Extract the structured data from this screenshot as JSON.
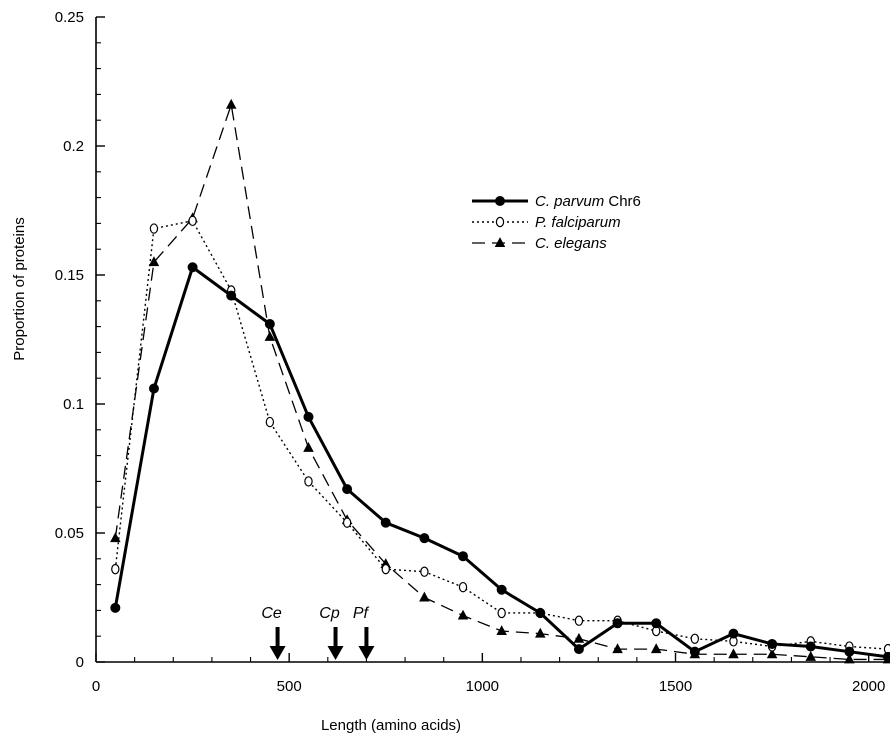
{
  "chart_data": {
    "type": "line",
    "title": "",
    "xlabel": "Length (amino acids)",
    "ylabel": "Proportion of proteins",
    "xlim": [
      0,
      2050
    ],
    "ylim": [
      0,
      0.25
    ],
    "x_ticks": [
      0,
      500,
      1000,
      1500,
      2000
    ],
    "x_tick_labels": [
      "0",
      "500",
      "1000",
      "1500",
      "2000"
    ],
    "y_ticks": [
      0,
      0.05,
      0.1,
      0.15,
      0.2,
      0.25
    ],
    "y_tick_labels": [
      "0",
      "0.05",
      "0.1",
      "0.15",
      "0.2",
      "0.25"
    ],
    "grid": false,
    "legend_position": "upper-right",
    "x": [
      50,
      150,
      250,
      350,
      450,
      550,
      650,
      750,
      850,
      950,
      1050,
      1150,
      1250,
      1350,
      1450,
      1550,
      1650,
      1750,
      1850,
      1950,
      2050
    ],
    "series": [
      {
        "name_italic": "C. parvum",
        "name_suffix": " Chr6",
        "style": "solid",
        "marker": "filled-circle",
        "values": [
          0.021,
          0.106,
          0.153,
          0.142,
          0.131,
          0.095,
          0.067,
          0.054,
          0.048,
          0.041,
          0.028,
          0.019,
          0.005,
          0.015,
          0.015,
          0.004,
          0.011,
          0.007,
          0.006,
          0.004,
          0.002
        ]
      },
      {
        "name_italic": "P. falciparum",
        "name_suffix": "",
        "style": "dotted",
        "marker": "open-circle",
        "values": [
          0.036,
          0.168,
          0.171,
          0.144,
          0.093,
          0.07,
          0.054,
          0.036,
          0.035,
          0.029,
          0.019,
          0.019,
          0.016,
          0.016,
          0.012,
          0.009,
          0.008,
          0.006,
          0.008,
          0.006,
          0.005
        ]
      },
      {
        "name_italic": "C. elegans",
        "name_suffix": "",
        "style": "dashed",
        "marker": "filled-triangle",
        "values": [
          0.048,
          0.155,
          0.172,
          0.216,
          0.126,
          0.083,
          0.055,
          0.038,
          0.025,
          0.018,
          0.012,
          0.011,
          0.009,
          0.005,
          0.005,
          0.003,
          0.003,
          0.003,
          0.002,
          0.001,
          0.001
        ]
      }
    ],
    "annotations": [
      {
        "label": "Ce",
        "x": 470
      },
      {
        "label": "Cp",
        "x": 620
      },
      {
        "label": "Pf",
        "x": 700
      }
    ]
  }
}
